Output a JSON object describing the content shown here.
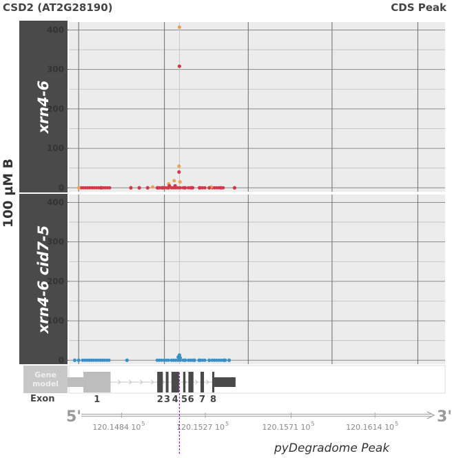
{
  "header": {
    "gene": "CSD2 (AT2G28190)",
    "peak_type": "CDS Peak"
  },
  "outer_label": "100 µM B",
  "chart_data": {
    "type": "scatter",
    "x_domain": [
      120.1457,
      120.165
    ],
    "ylim": [
      -10,
      420
    ],
    "y_ticks": [
      "0",
      "100",
      "200",
      "300",
      "400"
    ],
    "grid": true,
    "panels": [
      {
        "name": "xrn4-6",
        "color": "#d1394a",
        "alt_color": "#f0a050",
        "points": [
          [
            120.14735,
            0
          ],
          [
            120.14888,
            0
          ],
          [
            120.14931,
            0
          ],
          [
            120.14974,
            0
          ],
          [
            120.15025,
            0
          ],
          [
            120.15051,
            0
          ],
          [
            120.1508,
            0
          ],
          [
            120.15085,
            5
          ],
          [
            120.15115,
            5
          ],
          [
            120.15135,
            40
          ],
          [
            120.15137,
            308
          ],
          [
            120.15165,
            0
          ],
          [
            120.152,
            0
          ],
          [
            120.1524,
            0
          ],
          [
            120.1529,
            0
          ],
          [
            120.1535,
            0
          ],
          [
            120.1542,
            0
          ]
        ],
        "alt_points": [
          [
            120.1462,
            0
          ],
          [
            120.15082,
            10
          ],
          [
            120.1511,
            18
          ],
          [
            120.15135,
            55
          ],
          [
            120.15137,
            407
          ],
          [
            120.1514,
            15
          ],
          [
            120.15,
            2
          ],
          [
            120.153,
            2
          ]
        ],
        "clusters": [
          [
            120.14632,
            120.14785
          ],
          [
            120.15023,
            120.15052
          ],
          [
            120.15058,
            120.15081
          ],
          [
            120.15096,
            120.15144
          ],
          [
            120.15156,
            120.15176
          ],
          [
            120.15183,
            120.15209
          ],
          [
            120.15245,
            120.15268
          ],
          [
            120.15305,
            120.15365
          ]
        ]
      },
      {
        "name": "xrn4-6 cid7-5",
        "color": "#3b8fc4",
        "alt_color": "#3b8fc4",
        "points": [
          [
            120.146,
            0
          ],
          [
            120.1462,
            0
          ],
          [
            120.14868,
            0
          ],
          [
            120.15137,
            13
          ],
          [
            120.15131,
            8
          ],
          [
            120.15141,
            6
          ],
          [
            120.15166,
            0
          ],
          [
            120.15214,
            0
          ],
          [
            120.15238,
            0
          ],
          [
            120.1529,
            0
          ],
          [
            120.15368,
            0
          ],
          [
            120.15392,
            0
          ]
        ],
        "alt_points": [],
        "clusters": [
          [
            120.1464,
            120.14785
          ],
          [
            120.15023,
            120.15052
          ],
          [
            120.15058,
            120.15081
          ],
          [
            120.15096,
            120.15144
          ],
          [
            120.15156,
            120.15176
          ],
          [
            120.15183,
            120.15209
          ],
          [
            120.15245,
            120.15268
          ],
          [
            120.15305,
            120.1538
          ]
        ]
      }
    ],
    "gene_model": {
      "label": "Gene\nmodel",
      "exon_row_label": "Exon",
      "utr5": [
        120.14563,
        120.14784
      ],
      "exons": [
        {
          "label": "1",
          "range": [
            120.14644,
            120.14784
          ]
        },
        {
          "label": "2",
          "range": [
            120.15023,
            120.15052
          ]
        },
        {
          "label": "3",
          "range": [
            120.15067,
            120.15081
          ]
        },
        {
          "label": "4",
          "range": [
            120.15096,
            120.15135
          ]
        },
        {
          "label": "5",
          "range": [
            120.15156,
            120.15168
          ]
        },
        {
          "label": "6",
          "range": [
            120.15183,
            120.15209
          ]
        },
        {
          "label": "7",
          "range": [
            120.15245,
            120.15263
          ]
        },
        {
          "label": "8",
          "range": [
            120.15305,
            120.15316
          ]
        }
      ],
      "utr3": [
        120.15316,
        120.15425
      ],
      "prime5": "5'",
      "prime3": "3'",
      "axis_ticks": [
        {
          "label": "120.1484 10",
          "sup": "5",
          "x": 120.1484
        },
        {
          "label": "120.1527 10",
          "sup": "5",
          "x": 120.1527
        },
        {
          "label": "120.1571 10",
          "sup": "5",
          "x": 120.1571
        },
        {
          "label": "120.1614 10",
          "sup": "5",
          "x": 120.1614
        }
      ]
    },
    "peak": {
      "x": 120.15137,
      "label": "pyDegradome Peak"
    }
  }
}
